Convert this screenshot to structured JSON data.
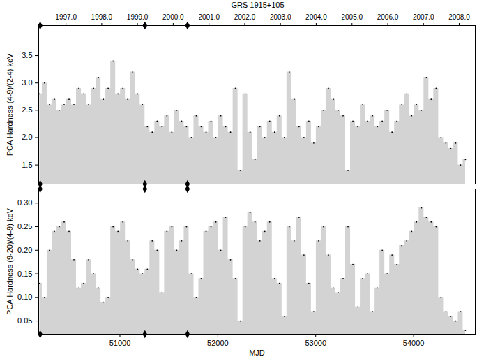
{
  "chart_data": [
    {
      "type": "area",
      "title": "GRS 1915+105",
      "marker": "dot",
      "color": "#d3d3d3",
      "y_label": "PCA Hardness (4-9)/(2-4) keV",
      "xlim": [
        50170,
        54630
      ],
      "x2ticks": [
        {
          "value": 50449,
          "label": "1997.0"
        },
        {
          "value": 50814,
          "label": "1998.0"
        },
        {
          "value": 51179,
          "label": "1999.0"
        },
        {
          "value": 51544,
          "label": "2000.0"
        },
        {
          "value": 51910,
          "label": "2001.0"
        },
        {
          "value": 52275,
          "label": "2002.0"
        },
        {
          "value": 52640,
          "label": "2003.0"
        },
        {
          "value": 53005,
          "label": "2004.0"
        },
        {
          "value": 53371,
          "label": "2005.0"
        },
        {
          "value": 53736,
          "label": "2006.0"
        },
        {
          "value": 54101,
          "label": "2007.0"
        },
        {
          "value": 54466,
          "label": "2008.0"
        }
      ],
      "ylim": [
        1.15,
        4.05
      ],
      "yticks": [
        1.5,
        {
          "value": 2.0,
          "label": "2.0"
        },
        2.5,
        {
          "value": 3.0,
          "label": "3.0"
        },
        3.5
      ],
      "event_markers": [
        50185,
        51255,
        51690
      ],
      "x": [
        50180,
        50230,
        50280,
        50330,
        50380,
        50430,
        50480,
        50530,
        50580,
        50630,
        50680,
        50730,
        50780,
        50830,
        50880,
        50930,
        50980,
        51030,
        51080,
        51130,
        51180,
        51230,
        51280,
        51330,
        51380,
        51430,
        51480,
        51530,
        51580,
        51630,
        51680,
        51730,
        51780,
        51830,
        51880,
        51930,
        51980,
        52030,
        52080,
        52130,
        52180,
        52230,
        52280,
        52330,
        52380,
        52430,
        52480,
        52530,
        52580,
        52630,
        52680,
        52730,
        52780,
        52830,
        52880,
        52930,
        52980,
        53030,
        53080,
        53130,
        53180,
        53230,
        53280,
        53330,
        53380,
        53430,
        53480,
        53530,
        53580,
        53630,
        53680,
        53730,
        53780,
        53830,
        53880,
        53930,
        53980,
        54030,
        54080,
        54130,
        54180,
        54230,
        54280,
        54330,
        54380,
        54430,
        54480,
        54530
      ],
      "values": [
        2.8,
        3.0,
        2.6,
        2.7,
        2.5,
        2.6,
        2.7,
        2.6,
        2.9,
        2.8,
        2.6,
        2.9,
        3.1,
        2.7,
        2.9,
        3.4,
        2.8,
        2.9,
        2.7,
        3.2,
        2.8,
        2.6,
        2.2,
        2.1,
        2.3,
        2.2,
        2.4,
        2.1,
        2.5,
        2.3,
        2.2,
        2.0,
        2.4,
        2.2,
        2.1,
        2.3,
        2.0,
        2.4,
        2.2,
        2.1,
        2.9,
        1.4,
        2.8,
        2.1,
        1.6,
        2.2,
        2.0,
        2.3,
        2.1,
        2.4,
        2.0,
        3.2,
        2.7,
        2.2,
        2.0,
        2.3,
        1.9,
        2.2,
        2.5,
        2.9,
        2.7,
        2.5,
        2.4,
        1.4,
        2.3,
        2.2,
        2.6,
        2.3,
        2.4,
        2.2,
        2.3,
        2.5,
        2.1,
        2.3,
        2.6,
        2.8,
        2.4,
        2.6,
        2.5,
        3.1,
        2.7,
        2.9,
        2.0,
        1.9,
        1.8,
        1.9,
        1.5,
        1.6
      ]
    },
    {
      "type": "area",
      "marker": "dot",
      "color": "#d3d3d3",
      "x_label": "MJD",
      "y_label": "PCA Hardness (9-20)/(4-9) keV",
      "xlim": [
        50170,
        54630
      ],
      "xticks": [
        51000,
        52000,
        53000,
        54000
      ],
      "ylim": [
        0.022,
        0.33
      ],
      "yticks": [
        0.05,
        {
          "value": 0.1,
          "label": "0.10"
        },
        0.15,
        {
          "value": 0.2,
          "label": "0.20"
        },
        0.25,
        {
          "value": 0.3,
          "label": "0.30"
        }
      ],
      "event_markers": [
        50185,
        51255,
        51690
      ],
      "x": [
        50180,
        50230,
        50280,
        50330,
        50380,
        50430,
        50480,
        50530,
        50580,
        50630,
        50680,
        50730,
        50780,
        50830,
        50880,
        50930,
        50980,
        51030,
        51080,
        51130,
        51180,
        51230,
        51280,
        51330,
        51380,
        51430,
        51480,
        51530,
        51580,
        51630,
        51680,
        51730,
        51780,
        51830,
        51880,
        51930,
        51980,
        52030,
        52080,
        52130,
        52180,
        52230,
        52280,
        52330,
        52380,
        52430,
        52480,
        52530,
        52580,
        52630,
        52680,
        52730,
        52780,
        52830,
        52880,
        52930,
        52980,
        53030,
        53080,
        53130,
        53180,
        53230,
        53280,
        53330,
        53380,
        53430,
        53480,
        53530,
        53580,
        53630,
        53680,
        53730,
        53780,
        53830,
        53880,
        53930,
        53980,
        54030,
        54080,
        54130,
        54180,
        54230,
        54280,
        54330,
        54380,
        54430,
        54480,
        54530
      ],
      "values": [
        0.13,
        0.1,
        0.2,
        0.24,
        0.25,
        0.26,
        0.24,
        0.18,
        0.12,
        0.13,
        0.18,
        0.15,
        0.12,
        0.09,
        0.1,
        0.25,
        0.24,
        0.26,
        0.22,
        0.18,
        0.16,
        0.15,
        0.16,
        0.22,
        0.2,
        0.11,
        0.24,
        0.25,
        0.2,
        0.22,
        0.25,
        0.15,
        0.1,
        0.14,
        0.24,
        0.25,
        0.26,
        0.2,
        0.27,
        0.18,
        0.14,
        0.05,
        0.25,
        0.28,
        0.26,
        0.22,
        0.24,
        0.26,
        0.14,
        0.13,
        0.06,
        0.25,
        0.22,
        0.27,
        0.19,
        0.13,
        0.07,
        0.22,
        0.25,
        0.19,
        0.12,
        0.11,
        0.14,
        0.25,
        0.17,
        0.08,
        0.14,
        0.15,
        0.07,
        0.12,
        0.2,
        0.15,
        0.19,
        0.17,
        0.21,
        0.22,
        0.24,
        0.26,
        0.29,
        0.27,
        0.26,
        0.25,
        0.1,
        0.07,
        0.06,
        0.05,
        0.07,
        0.03
      ]
    }
  ]
}
